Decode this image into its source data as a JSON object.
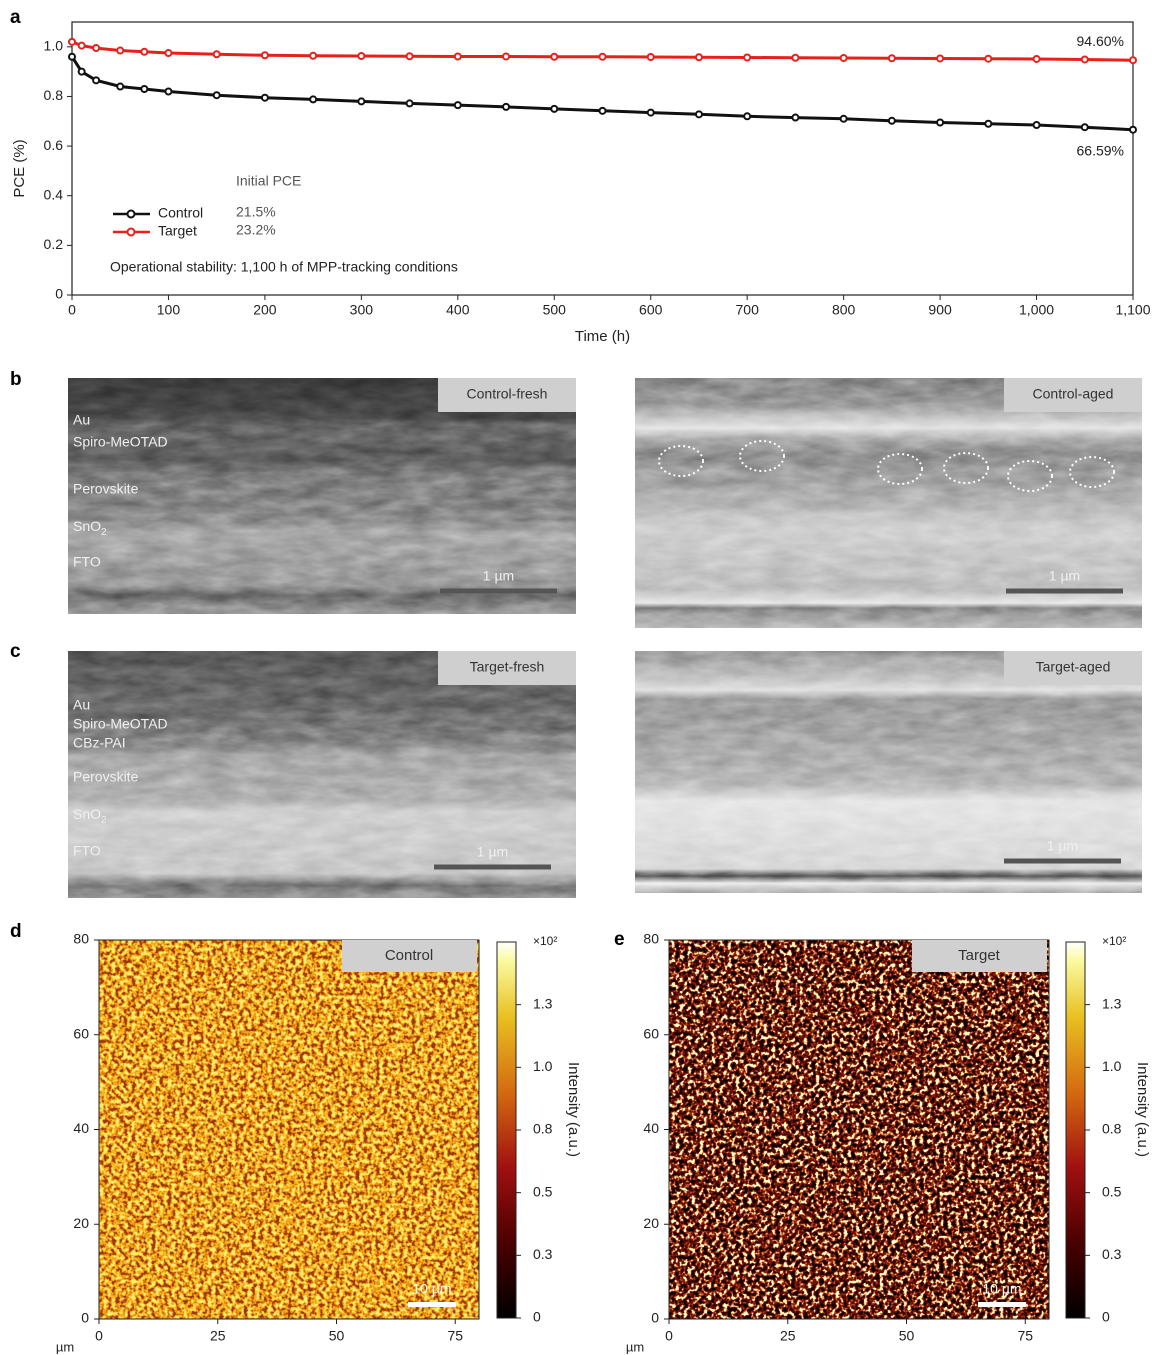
{
  "chart_data": [
    {
      "type": "line",
      "panel": "a",
      "xlabel": "Time (h)",
      "ylabel": "PCE (%)",
      "xlim": [
        0,
        1100
      ],
      "ylim": [
        0,
        1.1
      ],
      "xticks": [
        0,
        100,
        200,
        300,
        400,
        500,
        600,
        700,
        800,
        900,
        {
          "value": 1000,
          "label": "1,000"
        },
        {
          "value": 1100,
          "label": "1,100"
        }
      ],
      "yticks": [
        0,
        0.2,
        0.4,
        0.6,
        0.8,
        {
          "value": 1,
          "label": "1.0"
        }
      ],
      "x": [
        0,
        10,
        25,
        50,
        75,
        100,
        150,
        200,
        250,
        300,
        350,
        400,
        450,
        500,
        550,
        600,
        650,
        700,
        750,
        800,
        850,
        900,
        950,
        1000,
        1050,
        1100
      ],
      "series": [
        {
          "name": "Control",
          "color": "#111111",
          "initial_pce": "21.5%",
          "end_label": "66.59%",
          "values": [
            0.96,
            0.9,
            0.865,
            0.84,
            0.83,
            0.82,
            0.805,
            0.795,
            0.788,
            0.78,
            0.772,
            0.765,
            0.758,
            0.75,
            0.742,
            0.735,
            0.728,
            0.72,
            0.715,
            0.71,
            0.702,
            0.695,
            0.69,
            0.685,
            0.676,
            0.666
          ]
        },
        {
          "name": "Target",
          "color": "#e8201c",
          "initial_pce": "23.2%",
          "end_label": "94.60%",
          "values": [
            1.02,
            1.005,
            0.995,
            0.985,
            0.98,
            0.975,
            0.97,
            0.966,
            0.964,
            0.963,
            0.962,
            0.961,
            0.961,
            0.96,
            0.96,
            0.959,
            0.958,
            0.957,
            0.956,
            0.955,
            0.954,
            0.953,
            0.952,
            0.951,
            0.949,
            0.946
          ]
        }
      ],
      "legend_title": "Initial PCE",
      "note": "Operational stability: 1,100 h of MPP-tracking conditions"
    },
    {
      "type": "heatmap",
      "panel": "d",
      "title": "Control",
      "x_unit": "µm",
      "scale_bar": "10 µm",
      "xlim": [
        0,
        80
      ],
      "ylim": [
        0,
        80
      ],
      "xticks": [
        0,
        25,
        50,
        75
      ],
      "yticks": [
        0,
        20,
        40,
        60,
        80
      ],
      "colorbar": {
        "clim": [
          0,
          1.5
        ],
        "ticks": [
          0,
          {
            "value": 0.25,
            "label": "0.3"
          },
          0.5,
          {
            "value": 0.75,
            "label": "0.8"
          },
          {
            "value": 1,
            "label": "1.0"
          },
          {
            "value": 1.25,
            "label": "1.3"
          }
        ],
        "multiplier": "×10²",
        "label": "Intensity (a.u.)"
      }
    },
    {
      "type": "heatmap",
      "panel": "e",
      "title": "Target",
      "x_unit": "µm",
      "scale_bar": "10 µm",
      "xlim": [
        0,
        80
      ],
      "ylim": [
        0,
        80
      ],
      "xticks": [
        0,
        25,
        50,
        75
      ],
      "yticks": [
        0,
        20,
        40,
        60,
        80
      ],
      "colorbar": {
        "clim": [
          0,
          1.5
        ],
        "ticks": [
          0,
          {
            "value": 0.25,
            "label": "0.3"
          },
          0.5,
          {
            "value": 0.75,
            "label": "0.8"
          },
          {
            "value": 1,
            "label": "1.0"
          },
          {
            "value": 1.25,
            "label": "1.3"
          }
        ],
        "multiplier": "×10²",
        "label": "Intensity (a.u.)"
      }
    }
  ],
  "micrographs": [
    {
      "panel": "b",
      "images": [
        {
          "title": "Control-fresh",
          "layers": [
            "Au",
            "Spiro-MeOTAD",
            "Perovskite",
            {
              "text": "SnO",
              "sub": "2"
            },
            "FTO"
          ],
          "scale_bar": "1 µm"
        },
        {
          "title": "Control-aged",
          "scale_bar": "1 µm"
        }
      ]
    },
    {
      "panel": "c",
      "images": [
        {
          "title": "Target-fresh",
          "layers": [
            "Au",
            "Spiro-MeOTAD",
            "CBz-PAI",
            "Perovskite",
            {
              "text": "SnO",
              "sub": "2"
            },
            "FTO"
          ],
          "scale_bar": "1 µm"
        },
        {
          "title": "Target-aged",
          "scale_bar": "1 µm"
        }
      ]
    }
  ]
}
